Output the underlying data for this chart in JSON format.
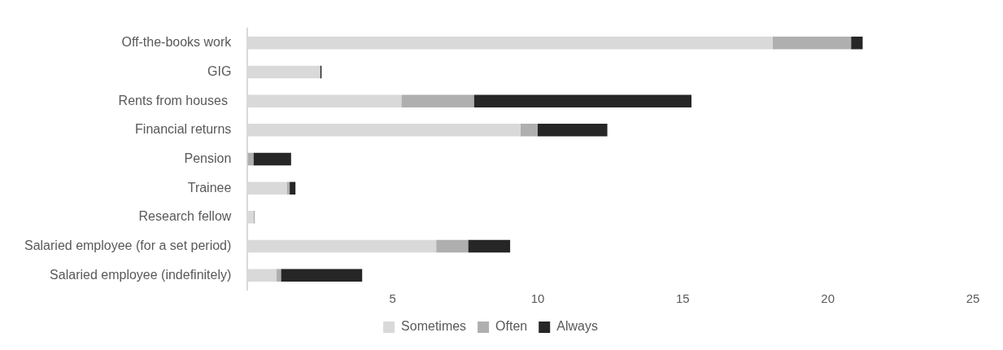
{
  "chart_data": {
    "type": "bar",
    "orientation": "horizontal",
    "stacked": true,
    "categories": [
      "Off-the-books work",
      "GIG",
      "Rents from houses ",
      "Financial returns",
      "Pension",
      "Trainee",
      "Research fellow",
      "Salaried employee (for a set period)",
      "Salaried employee (indefinitely)"
    ],
    "series": [
      {
        "name": "Sometimes",
        "color": "#d9d9d9",
        "values": [
          18.1,
          2.5,
          5.3,
          9.4,
          0,
          1.35,
          0.2,
          6.5,
          1.0
        ]
      },
      {
        "name": "Often",
        "color": "#afafaf",
        "values": [
          2.7,
          0,
          2.5,
          0.6,
          0.2,
          0.1,
          0.05,
          1.1,
          0.15
        ]
      },
      {
        "name": "Always",
        "color": "#262626",
        "values": [
          0.4,
          0.05,
          7.5,
          2.4,
          1.3,
          0.2,
          0,
          1.45,
          2.8
        ]
      }
    ],
    "xlim": [
      0,
      25
    ],
    "xticks": [
      5,
      10,
      15,
      20,
      25
    ],
    "grid": false,
    "legend": "bottom"
  }
}
